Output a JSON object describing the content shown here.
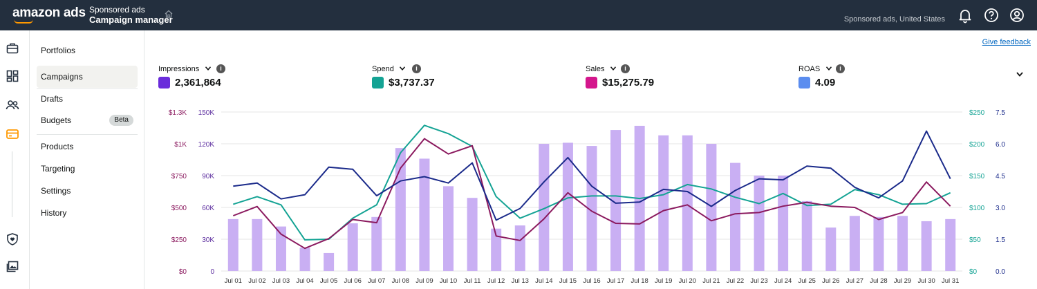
{
  "header": {
    "logo_text": "amazon ads",
    "breadcrumb_top": "Sponsored ads",
    "breadcrumb_bottom": "Campaign manager",
    "account": "Sponsored ads, United States",
    "icons": [
      "home-icon",
      "bell-icon",
      "help-icon",
      "account-icon"
    ]
  },
  "rail": {
    "icons": [
      "briefcase-icon",
      "dashboard-icon",
      "people-icon",
      "campaign-card-icon",
      "shield-heart-icon",
      "image-gallery-icon"
    ]
  },
  "nav": {
    "items": [
      {
        "label": "Portfolios"
      },
      {
        "label": "Campaigns"
      },
      {
        "label": "Drafts"
      },
      {
        "label": "Budgets"
      },
      {
        "label": "Products"
      },
      {
        "label": "Targeting"
      },
      {
        "label": "Settings"
      },
      {
        "label": "History"
      }
    ],
    "budgets_badge": "Beta",
    "active": "Campaigns"
  },
  "feedback_link": "Give feedback",
  "metrics": [
    {
      "label": "Impressions",
      "value": "2,361,864",
      "color": "#6a2cdb"
    },
    {
      "label": "Spend",
      "value": "$3,737.37",
      "color": "#14a394"
    },
    {
      "label": "Sales",
      "value": "$15,275.79",
      "color": "#d4168c"
    },
    {
      "label": "ROAS",
      "value": "4.09",
      "color": "#5b8def"
    }
  ],
  "chart_data": {
    "type": "bar",
    "categories": [
      "Jul 01",
      "Jul 02",
      "Jul 03",
      "Jul 04",
      "Jul 05",
      "Jul 06",
      "Jul 07",
      "Jul 08",
      "Jul 09",
      "Jul 10",
      "Jul 11",
      "Jul 12",
      "Jul 13",
      "Jul 14",
      "Jul 15",
      "Jul 16",
      "Jul 17",
      "Jul 18",
      "Jul 19",
      "Jul 20",
      "Jul 21",
      "Jul 22",
      "Jul 23",
      "Jul 24",
      "Jul 25",
      "Jul 26",
      "Jul 27",
      "Jul 28",
      "Jul 29",
      "Jul 30",
      "Jul 31"
    ],
    "axes": {
      "impressions": {
        "ticks": [
          "0",
          "30K",
          "60K",
          "90K",
          "120K",
          "150K"
        ],
        "max": 150000,
        "color": "#5b2c9e"
      },
      "sales": {
        "ticks": [
          "$0",
          "$250",
          "$500",
          "$750",
          "$1K",
          "$1.3K"
        ],
        "max": 1250,
        "color": "#8b1a5f"
      },
      "spend": {
        "ticks": [
          "$0",
          "$50",
          "$100",
          "$150",
          "$200",
          "$250"
        ],
        "max": 250,
        "color": "#14a394"
      },
      "roas": {
        "ticks": [
          "0.0",
          "1.5",
          "3.0",
          "4.5",
          "6.0",
          "7.5"
        ],
        "max": 7.5,
        "color": "#1a2a8a"
      }
    },
    "series": [
      {
        "name": "Impressions",
        "type": "bar",
        "axis": "impressions",
        "color": "#c9aff3",
        "values": [
          49000,
          49000,
          42000,
          22000,
          17000,
          45000,
          51000,
          116000,
          106000,
          80000,
          69000,
          40000,
          43000,
          120000,
          121000,
          118000,
          133000,
          137000,
          128000,
          128000,
          120000,
          102000,
          90000,
          90000,
          66000,
          41000,
          52000,
          51000,
          52000,
          47000,
          49000
        ]
      },
      {
        "name": "Spend",
        "type": "line",
        "axis": "spend",
        "color": "#14a394",
        "values": [
          105,
          117,
          104,
          49,
          50,
          83,
          104,
          186,
          229,
          216,
          196,
          117,
          83,
          98,
          115,
          118,
          118,
          114,
          120,
          136,
          129,
          116,
          106,
          122,
          103,
          105,
          128,
          120,
          105,
          106,
          123
        ]
      },
      {
        "name": "Sales",
        "type": "line",
        "axis": "sales",
        "color": "#8b1a5f",
        "values": [
          435,
          507,
          290,
          178,
          255,
          405,
          380,
          810,
          1040,
          920,
          985,
          275,
          240,
          410,
          615,
          470,
          375,
          370,
          475,
          520,
          395,
          450,
          460,
          510,
          540,
          510,
          500,
          405,
          460,
          700,
          510
        ]
      },
      {
        "name": "ROAS",
        "type": "line",
        "axis": "roas",
        "color": "#1a2a8a",
        "values": [
          4.0,
          4.15,
          3.4,
          3.6,
          4.9,
          4.8,
          3.55,
          4.25,
          4.45,
          4.15,
          5.1,
          2.4,
          2.95,
          4.2,
          5.35,
          4.0,
          3.2,
          3.25,
          3.85,
          3.75,
          3.05,
          3.8,
          4.35,
          4.3,
          4.95,
          4.85,
          3.95,
          3.45,
          4.25,
          6.6,
          4.35
        ]
      }
    ]
  }
}
